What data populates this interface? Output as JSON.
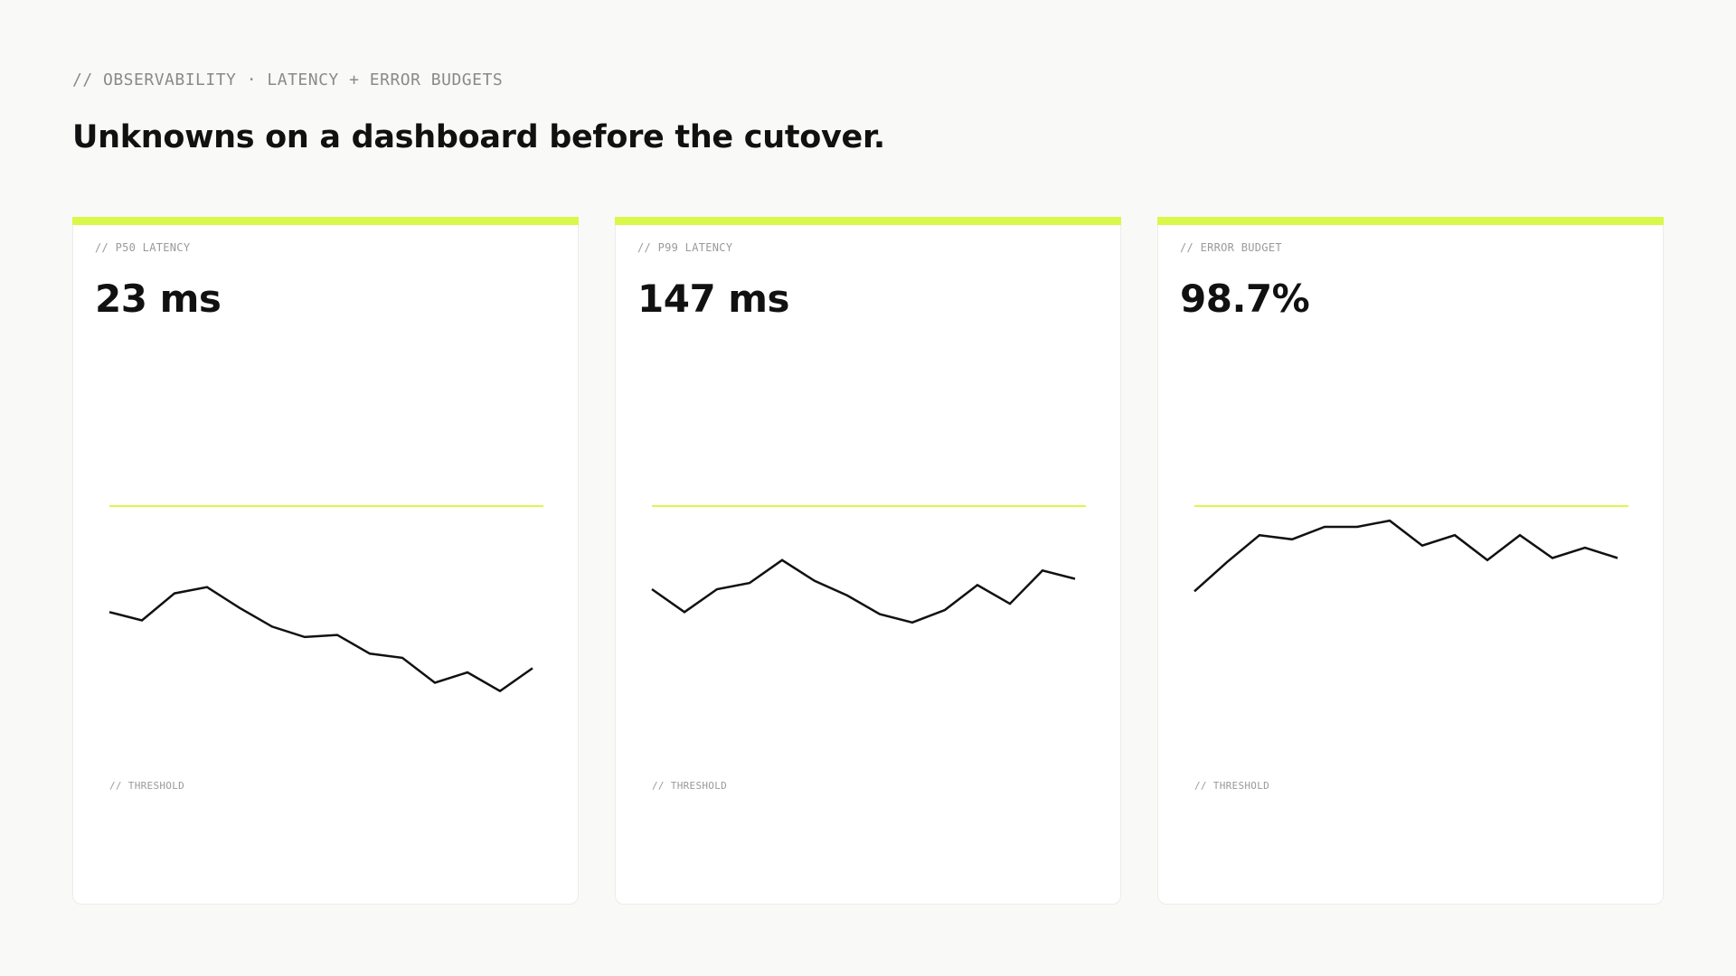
{
  "eyebrow": "// OBSERVABILITY · LATENCY + ERROR BUDGETS",
  "headline": "Unknowns on a dashboard before the cutover.",
  "colors": {
    "accent": "#d9f84a",
    "ink": "#111111",
    "muted": "#8a8a8a",
    "background": "#f9f9f7"
  },
  "cards": [
    {
      "label": "// P50 LATENCY",
      "value": "23 ms",
      "threshold_label": "// THRESHOLD"
    },
    {
      "label": "// P99 LATENCY",
      "value": "147 ms",
      "threshold_label": "// THRESHOLD"
    },
    {
      "label": "// ERROR BUDGET",
      "value": "98.7%",
      "threshold_label": "// THRESHOLD"
    }
  ],
  "chart_data": [
    {
      "type": "line",
      "ylim": [
        0,
        100
      ],
      "threshold": 100,
      "values": [
        49,
        45,
        58,
        61,
        51,
        42,
        37,
        38,
        29,
        27,
        15,
        20,
        11,
        22
      ]
    },
    {
      "type": "line",
      "ylim": [
        0,
        100
      ],
      "threshold": 100,
      "values": [
        60,
        49,
        60,
        63,
        74,
        64,
        57,
        48,
        44,
        50,
        62,
        53,
        69,
        65
      ]
    },
    {
      "type": "line",
      "ylim": [
        0,
        100
      ],
      "threshold": 100,
      "values": [
        59,
        73,
        86,
        84,
        90,
        90,
        93,
        81,
        86,
        74,
        86,
        75,
        80,
        75
      ]
    }
  ]
}
